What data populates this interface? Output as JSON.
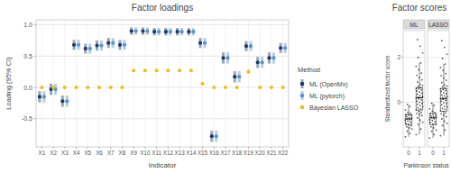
{
  "chart_data": [
    {
      "type": "point",
      "title": "Factor loadings",
      "x_label": "Indicator",
      "y_label": "Loading (95% CI)",
      "categories": [
        "X1",
        "X2",
        "X3",
        "X4",
        "X5",
        "X6",
        "X7",
        "X8",
        "X9",
        "X10",
        "X11",
        "X12",
        "X13",
        "X14",
        "X15",
        "X16",
        "X17",
        "X18",
        "X19",
        "X20",
        "X21",
        "X22"
      ],
      "ylim": [
        -0.95,
        1.08
      ],
      "yticks": [
        -0.5,
        {
          "value": 0,
          "label": "0.0"
        },
        0.5,
        {
          "value": 1,
          "label": "1.0"
        }
      ],
      "grid": true,
      "legend": "right",
      "legend_title": "Method",
      "series": [
        {
          "name": "ML (OpenMx)",
          "color": "#223a63",
          "marker": "circle",
          "values": [
            -0.15,
            -0.03,
            -0.22,
            0.68,
            0.62,
            0.67,
            0.71,
            0.68,
            0.9,
            0.9,
            0.89,
            0.89,
            0.89,
            0.89,
            0.71,
            -0.78,
            0.47,
            0.17,
            0.66,
            0.4,
            0.47,
            0.63
          ],
          "errors": [
            0.09,
            0.09,
            0.09,
            0.08,
            0.08,
            0.08,
            0.08,
            0.08,
            0.06,
            0.06,
            0.06,
            0.06,
            0.06,
            0.06,
            0.08,
            0.09,
            0.09,
            0.09,
            0.08,
            0.09,
            0.09,
            0.08
          ]
        },
        {
          "name": "ML (pytorch)",
          "color": "#5b95c8",
          "marker": "circle",
          "values": [
            -0.15,
            -0.03,
            -0.22,
            0.68,
            0.62,
            0.67,
            0.71,
            0.68,
            0.9,
            0.9,
            0.89,
            0.89,
            0.89,
            0.89,
            0.71,
            -0.78,
            0.47,
            0.17,
            0.66,
            0.4,
            0.47,
            0.63
          ],
          "errors": [
            0.09,
            0.09,
            0.09,
            0.08,
            0.08,
            0.08,
            0.08,
            0.08,
            0.06,
            0.06,
            0.06,
            0.06,
            0.06,
            0.06,
            0.08,
            0.09,
            0.09,
            0.09,
            0.08,
            0.09,
            0.09,
            0.08
          ]
        },
        {
          "name": "Bayesian LASSO",
          "color": "#e6bf2e",
          "marker": "circle",
          "values": [
            0,
            0,
            0,
            0,
            0,
            0,
            0,
            0,
            0.27,
            0.27,
            0.27,
            0.27,
            0.27,
            0.27,
            0.06,
            0,
            0,
            0,
            0.25,
            0,
            0,
            0
          ]
        }
      ]
    },
    {
      "type": "box",
      "title": "Factor scores",
      "x_label": "Parkinson status",
      "y_label": "Standardized factor score",
      "categories": [
        "0",
        "1"
      ],
      "ylim": [
        -2.0,
        3.2
      ],
      "yticks": [
        0,
        2
      ],
      "grid": true,
      "panels": [
        {
          "name": "ML",
          "boxes": [
            {
              "low": -1.55,
              "q1": -1.0,
              "median": -0.75,
              "q3": -0.55,
              "high": -0.1
            },
            {
              "low": -1.45,
              "q1": -0.35,
              "median": 0.2,
              "q3": 0.65,
              "high": 1.75
            }
          ],
          "points": [
            [
              -1.55,
              -1.4,
              -1.3,
              -1.2,
              -1.15,
              -1.1,
              -1.05,
              -1.0,
              -0.95,
              -0.9,
              -0.85,
              -0.8,
              -0.78,
              -0.75,
              -0.72,
              -0.7,
              -0.65,
              -0.6,
              -0.58,
              -0.55,
              -0.5,
              -0.45,
              -0.35,
              -0.2,
              -0.1
            ],
            [
              -1.45,
              -1.2,
              -1.0,
              -0.9,
              -0.8,
              -0.7,
              -0.6,
              -0.55,
              -0.5,
              -0.45,
              -0.4,
              -0.35,
              -0.3,
              -0.25,
              -0.2,
              -0.15,
              -0.1,
              -0.05,
              0,
              0.05,
              0.1,
              0.15,
              0.18,
              0.2,
              0.22,
              0.25,
              0.3,
              0.35,
              0.4,
              0.45,
              0.5,
              0.55,
              0.6,
              0.62,
              0.65,
              0.7,
              0.75,
              0.8,
              0.9,
              1.0,
              1.1,
              1.2,
              1.3,
              1.45,
              1.6,
              1.75,
              2.0,
              2.2,
              2.5,
              2.8
            ]
          ]
        },
        {
          "name": "LASSO",
          "boxes": [
            {
              "low": -1.6,
              "q1": -1.0,
              "median": -0.7,
              "q3": -0.5,
              "high": -0.05
            },
            {
              "low": -1.5,
              "q1": -0.4,
              "median": 0.15,
              "q3": 0.6,
              "high": 1.7
            }
          ],
          "points": [
            [
              -1.6,
              -1.45,
              -1.3,
              -1.25,
              -1.15,
              -1.1,
              -1.0,
              -0.98,
              -0.92,
              -0.88,
              -0.82,
              -0.78,
              -0.74,
              -0.7,
              -0.68,
              -0.65,
              -0.62,
              -0.58,
              -0.55,
              -0.5,
              -0.46,
              -0.4,
              -0.3,
              -0.15,
              -0.05
            ],
            [
              -1.5,
              -1.25,
              -1.05,
              -0.95,
              -0.85,
              -0.75,
              -0.65,
              -0.58,
              -0.52,
              -0.48,
              -0.42,
              -0.38,
              -0.32,
              -0.28,
              -0.22,
              -0.18,
              -0.12,
              -0.06,
              -0.02,
              0.04,
              0.08,
              0.12,
              0.15,
              0.18,
              0.2,
              0.24,
              0.28,
              0.32,
              0.38,
              0.42,
              0.48,
              0.52,
              0.56,
              0.6,
              0.63,
              0.68,
              0.72,
              0.78,
              0.88,
              0.98,
              1.08,
              1.18,
              1.28,
              1.42,
              1.55,
              1.7,
              1.95,
              2.15,
              2.45,
              2.75
            ]
          ]
        }
      ]
    }
  ]
}
